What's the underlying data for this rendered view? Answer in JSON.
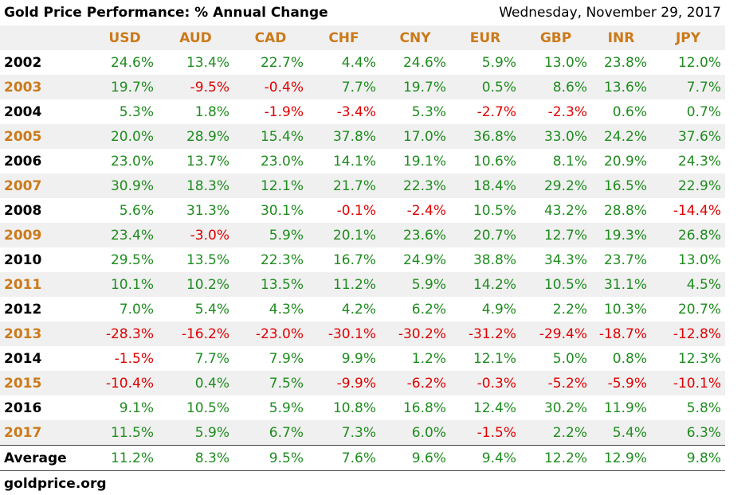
{
  "header": {
    "title": "Gold Price Performance: % Annual Change",
    "date": "Wednesday, November 29, 2017"
  },
  "table": {
    "columns": [
      "USD",
      "AUD",
      "CAD",
      "CHF",
      "CNY",
      "EUR",
      "GBP",
      "INR",
      "JPY"
    ],
    "rows": [
      [
        "2002",
        "24.6%",
        "13.4%",
        "22.7%",
        "4.4%",
        "24.6%",
        "5.9%",
        "13.0%",
        "23.8%",
        "12.0%"
      ],
      [
        "2003",
        "19.7%",
        "-9.5%",
        "-0.4%",
        "7.7%",
        "19.7%",
        "0.5%",
        "8.6%",
        "13.6%",
        "7.7%"
      ],
      [
        "2004",
        "5.3%",
        "1.8%",
        "-1.9%",
        "-3.4%",
        "5.3%",
        "-2.7%",
        "-2.3%",
        "0.6%",
        "0.7%"
      ],
      [
        "2005",
        "20.0%",
        "28.9%",
        "15.4%",
        "37.8%",
        "17.0%",
        "36.8%",
        "33.0%",
        "24.2%",
        "37.6%"
      ],
      [
        "2006",
        "23.0%",
        "13.7%",
        "23.0%",
        "14.1%",
        "19.1%",
        "10.6%",
        "8.1%",
        "20.9%",
        "24.3%"
      ],
      [
        "2007",
        "30.9%",
        "18.3%",
        "12.1%",
        "21.7%",
        "22.3%",
        "18.4%",
        "29.2%",
        "16.5%",
        "22.9%"
      ],
      [
        "2008",
        "5.6%",
        "31.3%",
        "30.1%",
        "-0.1%",
        "-2.4%",
        "10.5%",
        "43.2%",
        "28.8%",
        "-14.4%"
      ],
      [
        "2009",
        "23.4%",
        "-3.0%",
        "5.9%",
        "20.1%",
        "23.6%",
        "20.7%",
        "12.7%",
        "19.3%",
        "26.8%"
      ],
      [
        "2010",
        "29.5%",
        "13.5%",
        "22.3%",
        "16.7%",
        "24.9%",
        "38.8%",
        "34.3%",
        "23.7%",
        "13.0%"
      ],
      [
        "2011",
        "10.1%",
        "10.2%",
        "13.5%",
        "11.2%",
        "5.9%",
        "14.2%",
        "10.5%",
        "31.1%",
        "4.5%"
      ],
      [
        "2012",
        "7.0%",
        "5.4%",
        "4.3%",
        "4.2%",
        "6.2%",
        "4.9%",
        "2.2%",
        "10.3%",
        "20.7%"
      ],
      [
        "2013",
        "-28.3%",
        "-16.2%",
        "-23.0%",
        "-30.1%",
        "-30.2%",
        "-31.2%",
        "-29.4%",
        "-18.7%",
        "-12.8%"
      ],
      [
        "2014",
        "-1.5%",
        "7.7%",
        "7.9%",
        "9.9%",
        "1.2%",
        "12.1%",
        "5.0%",
        "0.8%",
        "12.3%"
      ],
      [
        "2015",
        "-10.4%",
        "0.4%",
        "7.5%",
        "-9.9%",
        "-6.2%",
        "-0.3%",
        "-5.2%",
        "-5.9%",
        "-10.1%"
      ],
      [
        "2016",
        "9.1%",
        "10.5%",
        "5.9%",
        "10.8%",
        "16.8%",
        "12.4%",
        "30.2%",
        "11.9%",
        "5.8%"
      ],
      [
        "2017",
        "11.5%",
        "5.9%",
        "6.7%",
        "7.3%",
        "6.0%",
        "-1.5%",
        "2.2%",
        "5.4%",
        "6.3%"
      ]
    ],
    "average": [
      "Average",
      "11.2%",
      "8.3%",
      "9.5%",
      "7.6%",
      "9.6%",
      "9.4%",
      "12.2%",
      "12.9%",
      "9.8%"
    ]
  },
  "footer": "goldprice.org"
}
